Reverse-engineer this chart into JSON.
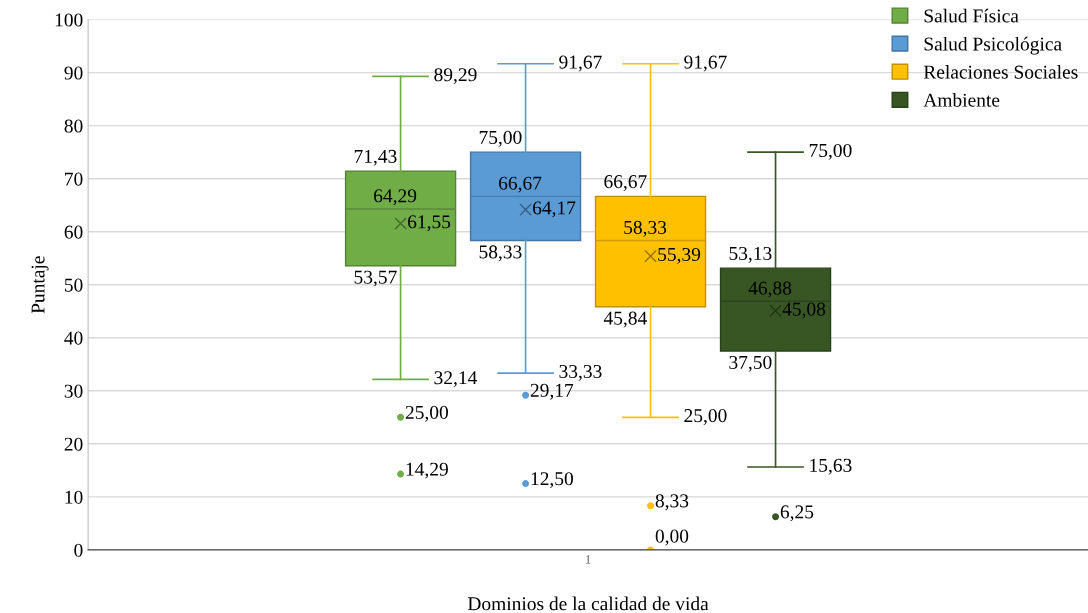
{
  "chart_data": {
    "type": "box",
    "xlabel": "Dominios de la calidad de vida",
    "ylabel": "Puntaje",
    "categories": [
      "1"
    ],
    "ylim": [
      0,
      100
    ],
    "yticks": [
      0,
      10,
      20,
      30,
      40,
      50,
      60,
      70,
      80,
      90,
      100
    ],
    "grid": "y",
    "legend": "top right",
    "data_labels": true,
    "series": [
      {
        "name": "Salud Física",
        "color": "#70ad47",
        "boxes": [
          {
            "low": 32.14,
            "q1": 53.57,
            "median": 64.29,
            "q3": 71.43,
            "high": 89.29,
            "mean": 61.55,
            "outliers": [
              25.0,
              14.29
            ]
          }
        ]
      },
      {
        "name": "Salud Psicológica",
        "color": "#5b9bd5",
        "boxes": [
          {
            "low": 33.33,
            "q1": 58.33,
            "median": 66.67,
            "q3": 75.0,
            "high": 91.67,
            "mean": 64.17,
            "outliers": [
              29.17,
              12.5
            ]
          }
        ]
      },
      {
        "name": "Relaciones Sociales",
        "color": "#ffc000",
        "boxes": [
          {
            "low": 25.0,
            "q1": 45.84,
            "median": 58.33,
            "q3": 66.67,
            "high": 91.67,
            "mean": 55.39,
            "outliers": [
              8.33,
              0.0
            ]
          }
        ]
      },
      {
        "name": "Ambiente",
        "color": "#375623",
        "boxes": [
          {
            "low": 15.63,
            "q1": 37.5,
            "median": 46.88,
            "q3": 53.13,
            "high": 75.0,
            "mean": 45.08,
            "outliers": [
              6.25
            ]
          }
        ]
      }
    ],
    "annotations": [
      "89,29",
      "71,43",
      "64,29",
      "61,55",
      "53,57",
      "32,14",
      "25,00",
      "14,29",
      "91,67",
      "75,00",
      "66,67",
      "64,17",
      "58,33",
      "33,33",
      "29,17",
      "12,50",
      "91,67",
      "66,67",
      "58,33",
      "55,39",
      "45,84",
      "25,00",
      "8,33",
      "0,00",
      "75,00",
      "53,13",
      "46,88",
      "45,08",
      "37,50",
      "15,63",
      "6,25"
    ]
  }
}
